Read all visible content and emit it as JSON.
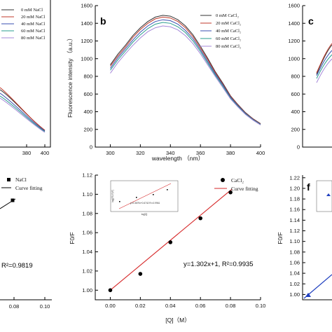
{
  "panels": {
    "a": {
      "legend": [
        "0 mM NaCl",
        "20 mM NaCl",
        "40 mM NaCl",
        "60 mM NaCl",
        "80 mM NaCl"
      ],
      "xticks": [
        "380",
        "400"
      ]
    },
    "b": {
      "label": "b",
      "ylabel": "Fluorescence intensity （a.u.）",
      "xlabel": "wavelength （nm）",
      "yticks": [
        "1600",
        "1400",
        "1200",
        "1000",
        "800",
        "600",
        "400",
        "200",
        "0"
      ],
      "xticks": [
        "300",
        "320",
        "340",
        "360",
        "380",
        "400"
      ],
      "legend": [
        "0 mM CaCl₂",
        "20 mM CaCl₂",
        "40 mM CaCl₂",
        "60 mM CaCl₂",
        "80 mM CaCl₂"
      ]
    },
    "c": {
      "label": "c",
      "yticks": [
        "1600",
        "1400",
        "1200",
        "1000",
        "800",
        "600",
        "400",
        "200",
        "0"
      ]
    },
    "d": {
      "legend_points": "NaCl",
      "legend_fit": "Curve fitting",
      "equation": "R²=0.9819",
      "xticks": [
        "0.08",
        "0.10"
      ]
    },
    "e": {
      "label": "e",
      "ylabel": "F0/F",
      "xlabel": "[Q]（M）",
      "yticks": [
        "1.12",
        "1.10",
        "1.08",
        "1.06",
        "1.04",
        "1.02",
        "1.00"
      ],
      "xticks": [
        "0.00",
        "0.02",
        "0.04",
        "0.06",
        "0.08",
        "0.10"
      ],
      "legend_points": "CaCl₂",
      "legend_fit": "Curve fitting",
      "equation": "y=1.302x+1, R²=0.9935",
      "inset_equation": "y=0.3679x+0.6742 R²=0.9961",
      "inset_ylabel": "log[(F0-F)/F]",
      "inset_xlabel": "log[Q]"
    },
    "f": {
      "label": "f",
      "ylabel": "F0/F",
      "yticks": [
        "1.22",
        "1.20",
        "1.18",
        "1.16",
        "1.14",
        "1.12",
        "1.10",
        "1.08",
        "1.06",
        "1.04",
        "1.02",
        "1.00"
      ]
    }
  },
  "colors": {
    "series": [
      "#333333",
      "#c0392b",
      "#3a4fb0",
      "#2a9d8f",
      "#a688d9"
    ],
    "fit_line": "#d62728",
    "fit_line_f": "#1f3fbf"
  },
  "chart_data": [
    {
      "type": "line",
      "panel": "b",
      "title": "",
      "xlabel": "wavelength （nm）",
      "ylabel": "Fluorescence intensity （a.u.）",
      "xlim": [
        290,
        400
      ],
      "ylim": [
        0,
        1600
      ],
      "x": [
        300,
        305,
        310,
        315,
        320,
        325,
        330,
        335,
        340,
        345,
        350,
        355,
        360,
        365,
        370,
        375,
        380,
        385,
        390,
        395,
        400
      ],
      "series": [
        {
          "name": "0 mM CaCl₂",
          "values": [
            930,
            1050,
            1150,
            1260,
            1350,
            1420,
            1470,
            1490,
            1480,
            1440,
            1370,
            1270,
            1140,
            1000,
            850,
            720,
            580,
            480,
            390,
            320,
            265
          ]
        },
        {
          "name": "20 mM CaCl₂",
          "values": [
            915,
            1030,
            1130,
            1240,
            1330,
            1400,
            1450,
            1470,
            1460,
            1420,
            1350,
            1250,
            1120,
            985,
            840,
            710,
            575,
            475,
            385,
            318,
            262
          ]
        },
        {
          "name": "40 mM CaCl₂",
          "values": [
            890,
            1010,
            1110,
            1210,
            1300,
            1370,
            1420,
            1440,
            1430,
            1390,
            1320,
            1225,
            1100,
            965,
            825,
            700,
            565,
            468,
            380,
            313,
            258
          ]
        },
        {
          "name": "60 mM CaCl₂",
          "values": [
            870,
            985,
            1085,
            1185,
            1270,
            1340,
            1390,
            1410,
            1400,
            1360,
            1295,
            1200,
            1080,
            945,
            810,
            685,
            555,
            460,
            375,
            308,
            255
          ]
        },
        {
          "name": "80 mM CaCl₂",
          "values": [
            835,
            955,
            1055,
            1150,
            1235,
            1305,
            1350,
            1370,
            1360,
            1325,
            1260,
            1170,
            1055,
            925,
            795,
            670,
            545,
            452,
            368,
            303,
            250
          ]
        }
      ]
    },
    {
      "type": "scatter",
      "panel": "e",
      "title": "",
      "xlabel": "[Q]（M）",
      "ylabel": "F0/F",
      "xlim": [
        -0.01,
        0.1
      ],
      "ylim": [
        0.99,
        1.12
      ],
      "series": [
        {
          "name": "CaCl₂",
          "x": [
            0.0,
            0.02,
            0.04,
            0.06,
            0.08
          ],
          "values": [
            1.0,
            1.017,
            1.05,
            1.075,
            1.102
          ]
        }
      ],
      "fit": {
        "slope": 1.302,
        "intercept": 1.0,
        "r2": 0.9935
      }
    }
  ]
}
